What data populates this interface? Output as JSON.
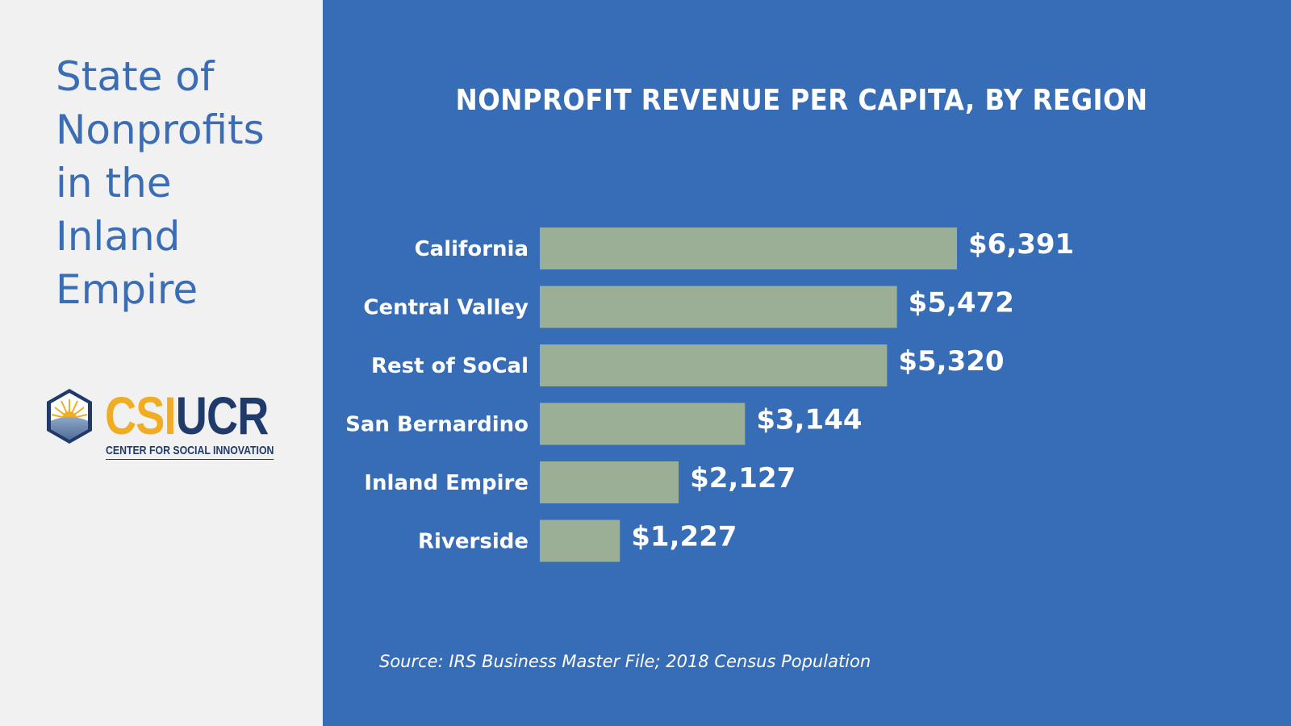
{
  "sidebar": {
    "title_lines": [
      "State of",
      "Nonprofits",
      "in the",
      "Inland",
      "Empire"
    ],
    "logo": {
      "icon": "sunrise-hexagon-icon",
      "csi": "CSI",
      "ucr": "UCR",
      "subtitle": "CENTER FOR SOCIAL INNOVATION"
    }
  },
  "colors": {
    "panel_bg": "#376cb6",
    "sidebar_bg": "#f1f1f1",
    "bar": "#9aaf95",
    "title_text": "#3a6db5",
    "logo_gold": "#f0ad23",
    "logo_navy": "#1f3a6b"
  },
  "chart_data": {
    "type": "bar",
    "orientation": "horizontal",
    "title": "NONPROFIT REVENUE PER CAPITA, BY REGION",
    "categories": [
      "California",
      "Central Valley",
      "Rest of SoCal",
      "San Bernardino",
      "Inland Empire",
      "Riverside"
    ],
    "values": [
      6391,
      5472,
      5320,
      3144,
      2127,
      1227
    ],
    "data_labels": [
      "$6,391",
      "$5,472",
      "$5,320",
      "$3,144",
      "$2,127",
      "$1,227"
    ],
    "xlabel": "",
    "ylabel": "",
    "xlim": [
      0,
      6391
    ],
    "grid": false,
    "legend": "none",
    "source": "Source: IRS Business Master File; 2018 Census Population"
  }
}
